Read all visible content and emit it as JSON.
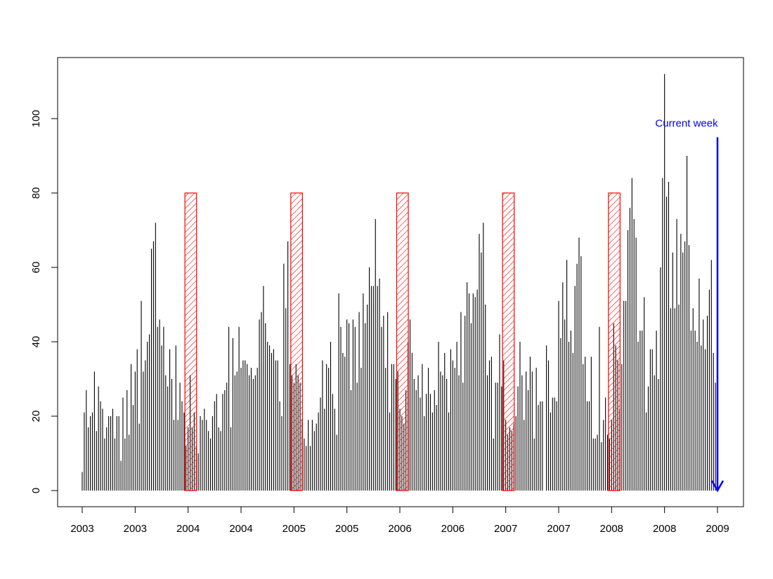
{
  "chart_data": {
    "type": "bar",
    "title": "",
    "xlabel": "",
    "ylabel": "",
    "xlim": [
      2003.0,
      2009.0
    ],
    "ylim": [
      0,
      110
    ],
    "grid": false,
    "x_ticks": [
      {
        "x": 2003.0,
        "label": "2003"
      },
      {
        "x": 2003.5,
        "label": "2003"
      },
      {
        "x": 2004.0,
        "label": "2004"
      },
      {
        "x": 2004.5,
        "label": "2004"
      },
      {
        "x": 2005.0,
        "label": "2005"
      },
      {
        "x": 2005.5,
        "label": "2005"
      },
      {
        "x": 2006.0,
        "label": "2006"
      },
      {
        "x": 2006.5,
        "label": "2006"
      },
      {
        "x": 2007.0,
        "label": "2007"
      },
      {
        "x": 2007.5,
        "label": "2007"
      },
      {
        "x": 2008.0,
        "label": "2008"
      },
      {
        "x": 2008.5,
        "label": "2008"
      },
      {
        "x": 2009.0,
        "label": "2009"
      }
    ],
    "y_ticks": [
      0,
      20,
      40,
      60,
      80,
      100
    ],
    "highlight_periods": [
      {
        "x_start": 2003.97,
        "x_end": 2004.08,
        "y": 80,
        "color": "#ff0000"
      },
      {
        "x_start": 2004.97,
        "x_end": 2005.08,
        "y": 80,
        "color": "#ff0000"
      },
      {
        "x_start": 2005.97,
        "x_end": 2006.08,
        "y": 80,
        "color": "#ff0000"
      },
      {
        "x_start": 2006.97,
        "x_end": 2007.08,
        "y": 80,
        "color": "#ff0000"
      },
      {
        "x_start": 2007.97,
        "x_end": 2008.08,
        "y": 80,
        "color": "#ff0000"
      }
    ],
    "annotation": {
      "text": "Current week",
      "x": 2009.0,
      "arrow_from_y": 95,
      "arrow_to_y": 0,
      "color": "#0000ff"
    },
    "series": [
      {
        "color": "#000000",
        "x_start": 2003.0,
        "x_step": 0.019231,
        "values": [
          5,
          21,
          27,
          17,
          20,
          21,
          32,
          16,
          28,
          24,
          22,
          14,
          17,
          20,
          20,
          22,
          14,
          20,
          20,
          8,
          25,
          14,
          27,
          15,
          34,
          23,
          32,
          38,
          18,
          51,
          32,
          35,
          40,
          42,
          65,
          67,
          72,
          44,
          46,
          39,
          44,
          31,
          28,
          38,
          30,
          19,
          39,
          19,
          29,
          24,
          21,
          12,
          17,
          31,
          17,
          21,
          12,
          10,
          20,
          19,
          22,
          19,
          16,
          14,
          20,
          24,
          26,
          17,
          16,
          26,
          27,
          29,
          44,
          17,
          41,
          31,
          32,
          44,
          33,
          35,
          35,
          34,
          31,
          33,
          30,
          31,
          33,
          46,
          48,
          55,
          45,
          40,
          39,
          37,
          38,
          35,
          35,
          24,
          20,
          61,
          49,
          67,
          34,
          31,
          29,
          34,
          31,
          29,
          19,
          14,
          12,
          19,
          12,
          19,
          16,
          18,
          21,
          25,
          35,
          22,
          34,
          33,
          40,
          26,
          22,
          15,
          53,
          44,
          37,
          36,
          46,
          45,
          27,
          46,
          44,
          29,
          48,
          33,
          53,
          45,
          50,
          60,
          55,
          55,
          73,
          55,
          57,
          44,
          47,
          33,
          48,
          21,
          34,
          34,
          30,
          32,
          22,
          20,
          18,
          27,
          40,
          46,
          37,
          30,
          27,
          31,
          25,
          34,
          20,
          26,
          33,
          26,
          21,
          27,
          23,
          40,
          32,
          31,
          37,
          30,
          21,
          38,
          35,
          33,
          40,
          31,
          48,
          29,
          47,
          56,
          53,
          45,
          53,
          52,
          54,
          69,
          64,
          72,
          50,
          31,
          35,
          36,
          14,
          29,
          29,
          42,
          28,
          35,
          19,
          15,
          17,
          16,
          18,
          20,
          28,
          40,
          31,
          19,
          32,
          27,
          36,
          32,
          14,
          33,
          23,
          24,
          24,
          0,
          39,
          35,
          21,
          25,
          25,
          24,
          51,
          41,
          56,
          46,
          62,
          40,
          43,
          37,
          55,
          61,
          68,
          63,
          34,
          36,
          24,
          24,
          36,
          14,
          14,
          15,
          44,
          13,
          19,
          25,
          15,
          14,
          19,
          45,
          39,
          35,
          22,
          34,
          51,
          51,
          70,
          76,
          84,
          73,
          68,
          40,
          43,
          43,
          52,
          21,
          28,
          38,
          38,
          31,
          43,
          30,
          60,
          84,
          112,
          79,
          83,
          49,
          64,
          49,
          73,
          50,
          69,
          64,
          67,
          90,
          66,
          43,
          49,
          43,
          40,
          57,
          39,
          46,
          38,
          47,
          54,
          62,
          37,
          29
        ]
      }
    ]
  }
}
